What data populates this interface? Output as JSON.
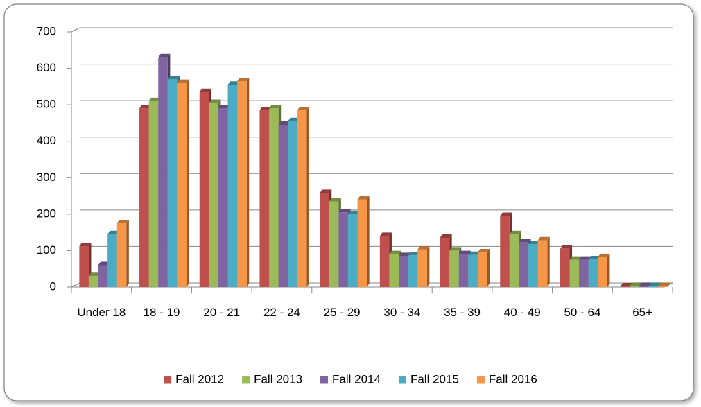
{
  "chart_data": {
    "type": "bar",
    "categories": [
      "Under 18",
      "18 - 19",
      "20 - 21",
      "22 - 24",
      "25 - 29",
      "30 - 34",
      "35 - 39",
      "40 - 49",
      "50 - 64",
      "65+"
    ],
    "series": [
      {
        "name": "Fall 2012",
        "color": "#c0504d",
        "values": [
          112,
          490,
          535,
          485,
          258,
          140,
          135,
          195,
          105,
          2
        ]
      },
      {
        "name": "Fall 2013",
        "color": "#9bbb59",
        "values": [
          30,
          510,
          505,
          490,
          235,
          90,
          100,
          145,
          75,
          3
        ]
      },
      {
        "name": "Fall 2014",
        "color": "#8064a2",
        "values": [
          60,
          630,
          490,
          445,
          205,
          85,
          90,
          123,
          75,
          3
        ]
      },
      {
        "name": "Fall 2015",
        "color": "#4bacc6",
        "values": [
          145,
          570,
          555,
          455,
          200,
          87,
          88,
          118,
          76,
          3
        ]
      },
      {
        "name": "Fall 2016",
        "color": "#f79646",
        "values": [
          175,
          560,
          565,
          485,
          240,
          103,
          95,
          128,
          82,
          3
        ]
      }
    ],
    "ylim": [
      0,
      700
    ],
    "yticks": [
      0,
      100,
      200,
      300,
      400,
      500,
      600,
      700
    ],
    "grid": true,
    "legend": "bottom"
  }
}
